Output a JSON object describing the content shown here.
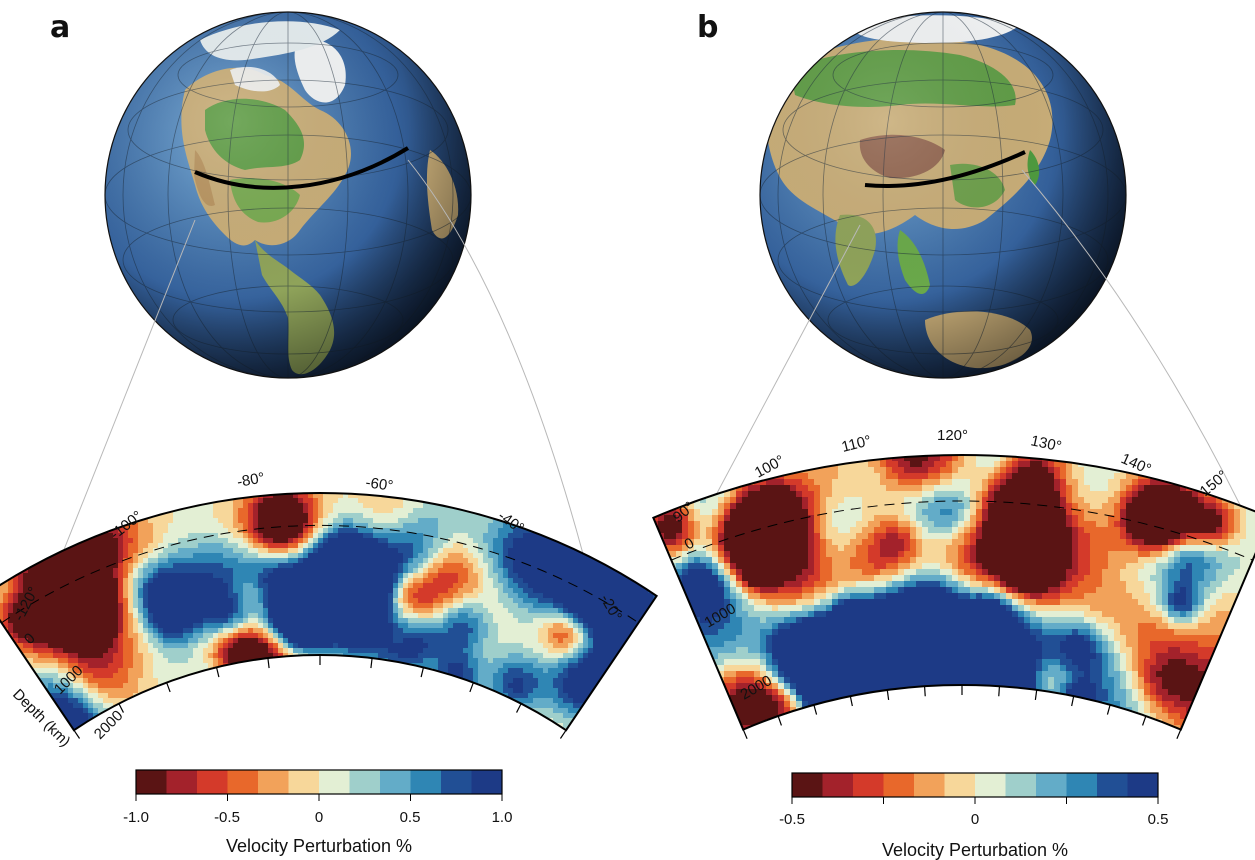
{
  "panels": [
    {
      "letter": "a",
      "region": "North America",
      "longitude_ticks": [
        "-120°",
        "-100°",
        "-80°",
        "-60°",
        "-40°",
        "-20°"
      ],
      "depth_ticks": [
        "0",
        "1000",
        "2000"
      ],
      "depth_axis_label": "Depth (km)",
      "colorbar": {
        "title": "Velocity Perturbation %",
        "tick_labels": [
          "-1.0",
          "-0.5",
          "0",
          "0.5",
          "1.0"
        ],
        "range": [
          -1.0,
          1.0
        ],
        "bins": 12
      }
    },
    {
      "letter": "b",
      "region": "East Asia",
      "longitude_ticks": [
        "90°",
        "100°",
        "110°",
        "120°",
        "130°",
        "140°",
        "150°"
      ],
      "depth_ticks": [
        "0",
        "1000",
        "2000"
      ],
      "colorbar": {
        "title": "Velocity Perturbation %",
        "tick_labels": [
          "-0.5",
          "0",
          "0.5"
        ],
        "range": [
          -0.5,
          0.5
        ],
        "bins": 12
      }
    }
  ],
  "colors": {
    "palette": [
      "#5a1414",
      "#a3222b",
      "#d43a2a",
      "#e8682b",
      "#f2a25a",
      "#f7d79a",
      "#e3efd4",
      "#9fcfcb",
      "#63acc8",
      "#2f86b4",
      "#214f95",
      "#1d3a86"
    ],
    "ocean": "#3e6da3",
    "land": "#c8ad78",
    "vegetation": "#4e9a3e",
    "ice": "#f1f3f4"
  }
}
